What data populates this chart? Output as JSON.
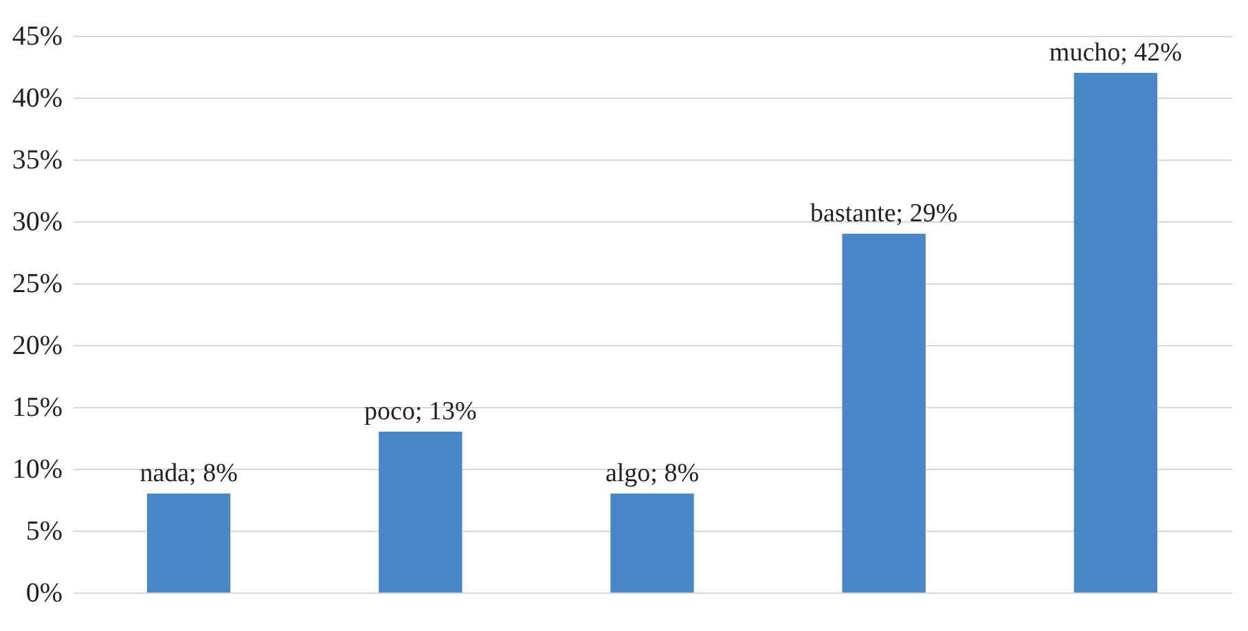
{
  "chart_data": {
    "type": "bar",
    "categories": [
      null,
      null,
      null,
      null,
      null
    ],
    "values": [
      8,
      13,
      8,
      29,
      42
    ],
    "color": "#4a86c8",
    "value_labels": [
      "nada; 8%",
      "poco; 13%",
      "algo; 8%",
      "bastante; 29%",
      "mucho; 42%"
    ],
    "ylim": [
      0,
      45
    ],
    "yticks": [
      {
        "value": 0,
        "label": "0%"
      },
      {
        "value": 5,
        "label": "5%"
      },
      {
        "value": 10,
        "label": "10%"
      },
      {
        "value": 15,
        "label": "15%"
      },
      {
        "value": 20,
        "label": "20%"
      },
      {
        "value": 25,
        "label": "25%"
      },
      {
        "value": 30,
        "label": "30%"
      },
      {
        "value": 35,
        "label": "35%"
      },
      {
        "value": 40,
        "label": "40%"
      },
      {
        "value": 45,
        "label": "45%"
      }
    ],
    "grid": "y",
    "tick_labels": "y"
  }
}
